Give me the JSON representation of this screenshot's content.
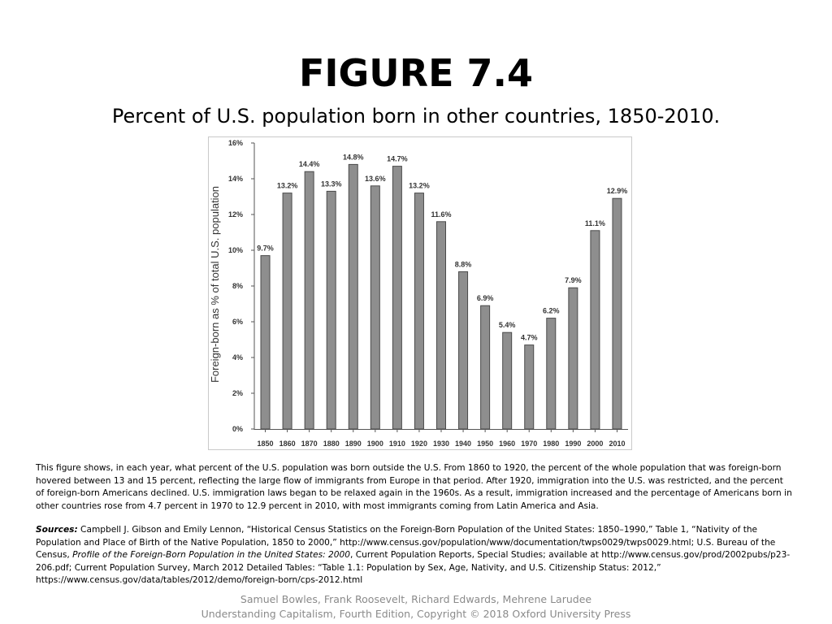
{
  "title": "FIGURE 7.4",
  "subtitle": "Percent of U.S. population born in other countries, 1850-2010.",
  "chart_data": {
    "type": "bar",
    "categories": [
      "1850",
      "1860",
      "1870",
      "1880",
      "1890",
      "1900",
      "1910",
      "1920",
      "1930",
      "1940",
      "1950",
      "1960",
      "1970",
      "1980",
      "1990",
      "2000",
      "2010"
    ],
    "values": [
      9.7,
      13.2,
      14.4,
      13.3,
      14.8,
      13.6,
      14.7,
      13.2,
      11.6,
      8.8,
      6.9,
      5.4,
      4.7,
      6.2,
      7.9,
      11.1,
      12.9
    ],
    "data_labels": [
      "9.7%",
      "13.2%",
      "14.4%",
      "13.3%",
      "14.8%",
      "13.6%",
      "14.7%",
      "13.2%",
      "11.6%",
      "8.8%",
      "6.9%",
      "5.4%",
      "4.7%",
      "6.2%",
      "7.9%",
      "11.1%",
      "12.9%"
    ],
    "yticks": [
      0,
      2,
      4,
      6,
      8,
      10,
      12,
      14,
      16
    ],
    "ytick_labels": [
      "0%",
      "2%",
      "4%",
      "6%",
      "8%",
      "10%",
      "12%",
      "14%",
      "16%"
    ],
    "ylim": [
      0,
      16
    ],
    "xlabel": "",
    "ylabel": "Foreign-born as % of total U.S. population",
    "grid": false,
    "bar_color": "#8e8e8e"
  },
  "caption": "This figure shows, in each year, what percent of the U.S. population was born outside the U.S. From 1860 to 1920, the percent of the whole population that was foreign-born hovered between 13 and 15 percent, reflecting the large flow of immigrants from Europe in that period. After 1920, immigration into the U.S. was restricted, and the percent of foreign-born Americans declined. U.S. immigration laws began to be relaxed again in the 1960s. As a result, immigration increased and the percentage of Americans born in other countries rose from 4.7 percent in 1970 to 12.9 percent in 2010, with most immigrants coming from Latin America and Asia.",
  "sources": {
    "lead": "Sources:",
    "part1": " Campbell J. Gibson and Emily Lennon, “Historical Census Statistics on the Foreign-Born Population of the United States: 1850–1990,” Table 1, “Nativity of the Population and Place of Birth of the Native Population, 1850 to 2000,” http://www.census.gov/population/www/documentation/twps0029/twps0029.html; U.S. Bureau of the Census, ",
    "italic": "Profile of the Foreign-Born Population in the United States: 2000",
    "part2": ", Current Population Reports, Special Studies; available at http://www.census.gov/prod/2002pubs/p23-206.pdf; Current Population Survey, March 2012 Detailed Tables: “Table 1.1: Population by Sex, Age, Nativity, and U.S. Citizenship Status: 2012,” https://www.census.gov/data/tables/2012/demo/foreign-born/cps-2012.html"
  },
  "footer": {
    "authors": "Samuel Bowles, Frank Roosevelt, Richard Edwards, Mehrene Larudee",
    "book": "Understanding Capitalism, Fourth Edition, Copyright © 2018 Oxford University Press"
  }
}
